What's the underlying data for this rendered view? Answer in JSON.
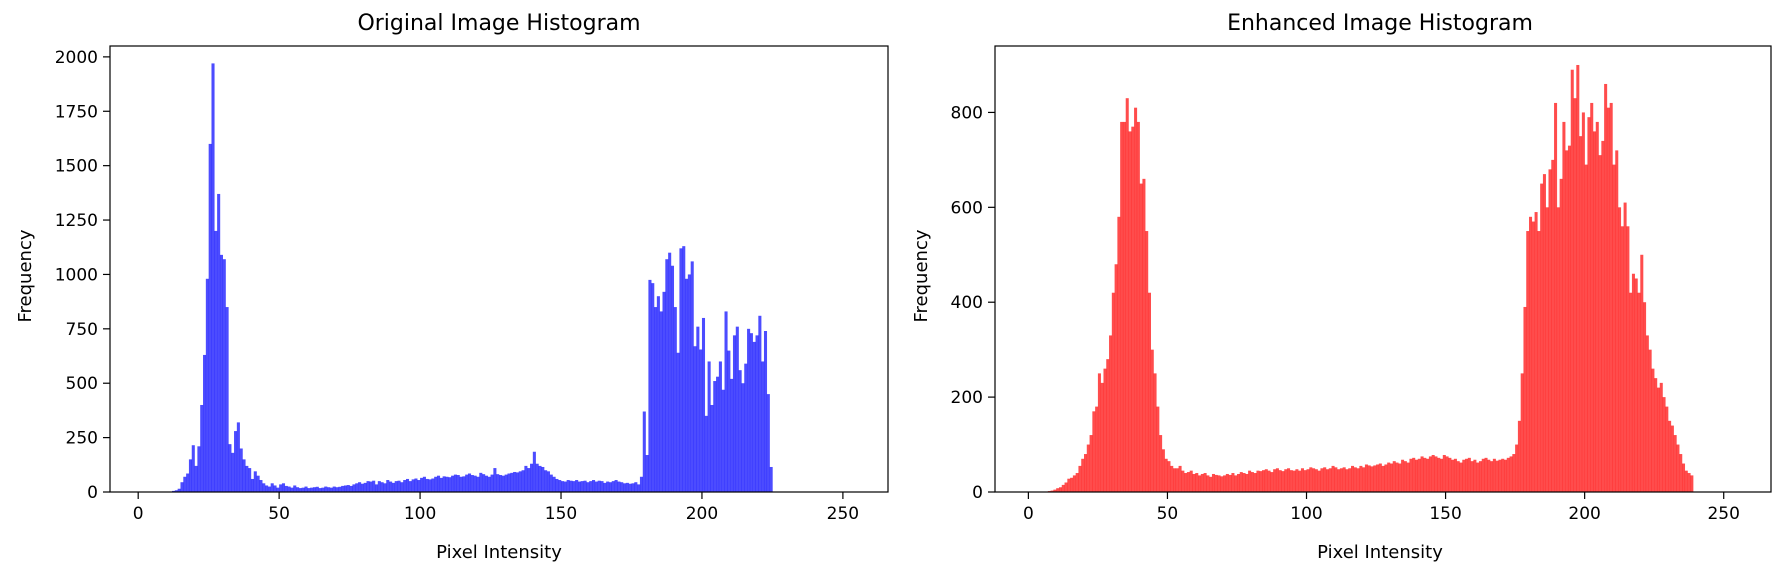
{
  "chart_data": [
    {
      "type": "bar",
      "title": "Original Image Histogram",
      "xlabel": "Pixel Intensity",
      "ylabel": "Frequency",
      "xlim": [
        -10,
        266
      ],
      "ylim": [
        0,
        2050
      ],
      "xticks": [
        0,
        50,
        100,
        150,
        200,
        250
      ],
      "yticks": [
        0,
        250,
        500,
        750,
        1000,
        1250,
        1500,
        1750,
        2000
      ],
      "bin_start": 0,
      "bin_width": 1,
      "color": "#0000ff",
      "opacity": 0.7,
      "values": [
        0,
        0,
        0,
        0,
        0,
        0,
        0,
        0,
        0,
        0,
        0,
        0,
        5,
        8,
        15,
        45,
        70,
        85,
        150,
        215,
        120,
        210,
        400,
        630,
        980,
        1600,
        1970,
        1200,
        1370,
        1090,
        1070,
        850,
        220,
        180,
        280,
        320,
        200,
        150,
        120,
        110,
        60,
        95,
        75,
        55,
        40,
        30,
        25,
        40,
        30,
        20,
        35,
        40,
        28,
        25,
        20,
        30,
        22,
        18,
        20,
        25,
        18,
        20,
        22,
        24,
        18,
        20,
        25,
        22,
        20,
        25,
        22,
        24,
        28,
        30,
        32,
        28,
        35,
        40,
        45,
        38,
        42,
        50,
        48,
        52,
        35,
        50,
        45,
        40,
        55,
        48,
        42,
        50,
        52,
        45,
        55,
        60,
        50,
        58,
        62,
        55,
        65,
        70,
        60,
        58,
        62,
        70,
        75,
        65,
        72,
        70,
        68,
        75,
        80,
        78,
        70,
        72,
        80,
        85,
        78,
        75,
        70,
        88,
        82,
        75,
        70,
        80,
        110,
        82,
        78,
        75,
        80,
        85,
        88,
        92,
        90,
        95,
        100,
        120,
        110,
        130,
        185,
        130,
        120,
        115,
        100,
        95,
        80,
        70,
        60,
        55,
        50,
        48,
        55,
        52,
        50,
        55,
        48,
        50,
        52,
        45,
        50,
        55,
        48,
        52,
        50,
        42,
        48,
        45,
        50,
        55,
        48,
        45,
        40,
        42,
        38,
        40,
        45,
        35,
        70,
        370,
        170,
        975,
        960,
        850,
        900,
        830,
        920,
        1070,
        1100,
        1040,
        850,
        640,
        1120,
        1130,
        980,
        1000,
        1060,
        670,
        760,
        655,
        800,
        350,
        600,
        400,
        510,
        530,
        600,
        470,
        830,
        650,
        520,
        720,
        760,
        560,
        500,
        590,
        750,
        730,
        690,
        720,
        810,
        600,
        740,
        450,
        115,
        0,
        0,
        0,
        0,
        0,
        0,
        0,
        0,
        0,
        0,
        0,
        0,
        0,
        0,
        0,
        0
      ]
    },
    {
      "type": "bar",
      "title": "Enhanced Image Histogram",
      "xlabel": "Pixel Intensity",
      "ylabel": "Frequency",
      "xlim": [
        -12,
        267
      ],
      "ylim": [
        0,
        940
      ],
      "xticks": [
        0,
        50,
        100,
        150,
        200,
        250
      ],
      "yticks": [
        0,
        200,
        400,
        600,
        800
      ],
      "bin_start": 0,
      "bin_width": 1,
      "color": "#ff0000",
      "opacity": 0.7,
      "values": [
        0,
        0,
        0,
        0,
        0,
        0,
        0,
        2,
        3,
        5,
        8,
        10,
        15,
        20,
        28,
        30,
        35,
        40,
        55,
        70,
        80,
        100,
        120,
        170,
        180,
        250,
        230,
        260,
        280,
        330,
        420,
        480,
        580,
        780,
        780,
        830,
        760,
        770,
        810,
        780,
        650,
        660,
        550,
        420,
        300,
        250,
        180,
        120,
        90,
        70,
        65,
        55,
        50,
        50,
        55,
        45,
        40,
        42,
        45,
        38,
        40,
        35,
        38,
        40,
        35,
        32,
        38,
        36,
        35,
        33,
        35,
        38,
        36,
        40,
        35,
        38,
        42,
        40,
        38,
        45,
        42,
        40,
        45,
        44,
        46,
        48,
        45,
        42,
        48,
        50,
        46,
        44,
        48,
        50,
        46,
        45,
        48,
        45,
        50,
        46,
        48,
        52,
        50,
        48,
        45,
        50,
        52,
        48,
        50,
        55,
        52,
        48,
        50,
        52,
        48,
        50,
        55,
        52,
        50,
        55,
        52,
        58,
        56,
        54,
        56,
        58,
        60,
        55,
        58,
        62,
        60,
        65,
        62,
        60,
        68,
        65,
        62,
        70,
        72,
        68,
        70,
        75,
        72,
        70,
        75,
        78,
        75,
        72,
        70,
        78,
        75,
        72,
        68,
        70,
        65,
        62,
        68,
        70,
        72,
        65,
        68,
        62,
        65,
        70,
        72,
        68,
        65,
        70,
        66,
        68,
        70,
        68,
        72,
        75,
        80,
        100,
        150,
        250,
        390,
        550,
        580,
        570,
        590,
        550,
        650,
        670,
        600,
        680,
        700,
        820,
        600,
        660,
        780,
        720,
        730,
        890,
        830,
        900,
        750,
        800,
        690,
        790,
        820,
        760,
        780,
        710,
        740,
        860,
        810,
        820,
        690,
        720,
        600,
        560,
        610,
        560,
        420,
        460,
        450,
        420,
        500,
        400,
        330,
        300,
        260,
        240,
        220,
        230,
        200,
        180,
        150,
        140,
        120,
        100,
        80,
        60,
        45,
        40,
        35,
        0,
        0,
        0,
        0,
        0,
        0,
        0,
        0,
        0,
        0
      ]
    }
  ]
}
